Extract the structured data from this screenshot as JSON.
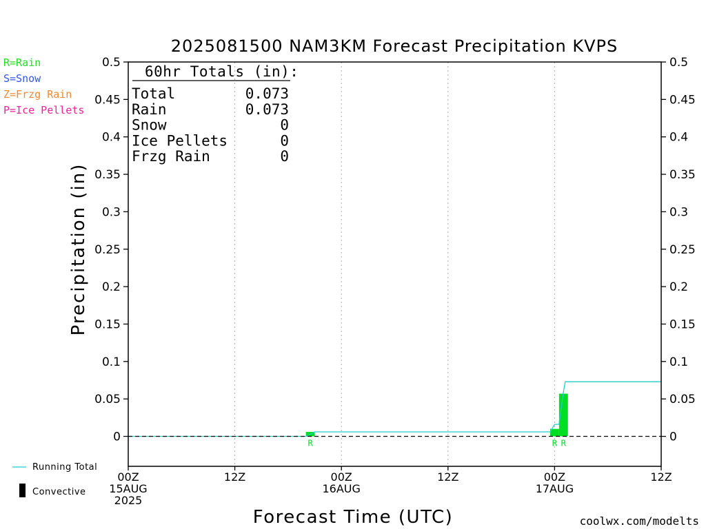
{
  "chart_data": {
    "type": "bar",
    "title": "2025081500 NAM3KM Forecast Precipitation KVPS",
    "xlabel": "Forecast Time (UTC)",
    "ylabel": "Precipitation (in)",
    "ylim": [
      -0.04,
      0.5
    ],
    "xlim_hours": [
      0,
      60
    ],
    "y_ticks": [
      0,
      0.05,
      0.1,
      0.15,
      0.2,
      0.25,
      0.3,
      0.35,
      0.4,
      0.45,
      0.5
    ],
    "y_tick_labels": [
      "0",
      "0.05",
      "0.1",
      "0.15",
      "0.2",
      "0.25",
      "0.3",
      "0.35",
      "0.4",
      "0.45",
      "0.5"
    ],
    "x_ticks": [
      {
        "hour": 0,
        "lines": [
          "00Z",
          "15AUG",
          "2025"
        ]
      },
      {
        "hour": 12,
        "lines": [
          "12Z"
        ]
      },
      {
        "hour": 24,
        "lines": [
          "00Z",
          "16AUG"
        ]
      },
      {
        "hour": 36,
        "lines": [
          "12Z"
        ]
      },
      {
        "hour": 48,
        "lines": [
          "00Z",
          "17AUG"
        ]
      },
      {
        "hour": 60,
        "lines": [
          "12Z"
        ]
      }
    ],
    "grid_hours": [
      12,
      24,
      36,
      48
    ],
    "legend_types": [
      {
        "label": "R=Rain",
        "color": "#22dd22"
      },
      {
        "label": "S=Snow",
        "color": "#3355ee"
      },
      {
        "label": "Z=Frzg Rain",
        "color": "#ee8833"
      },
      {
        "label": "P=Ice Pellets",
        "color": "#ee2299"
      }
    ],
    "legend_lines": [
      {
        "label": "Running Total",
        "color": "#22cccc"
      },
      {
        "label": "Convective",
        "color": "#000000"
      }
    ],
    "bars": [
      {
        "start_hour": 20,
        "end_hour": 21,
        "value": 0.006,
        "type": "R"
      },
      {
        "start_hour": 47.5,
        "end_hour": 48.5,
        "value": 0.01,
        "type": "R"
      },
      {
        "start_hour": 48.5,
        "end_hour": 49.5,
        "value": 0.057,
        "type": "R"
      }
    ],
    "running_total": {
      "x": [
        0,
        20,
        21,
        47,
        47.5,
        48,
        48.5,
        49,
        49.2,
        60
      ],
      "y": [
        0,
        0,
        0.006,
        0.006,
        0.006,
        0.016,
        0.016,
        0.06,
        0.073,
        0.073
      ]
    },
    "totals_box": {
      "title": "60hr Totals (in):",
      "rows": [
        {
          "label": "Total",
          "value": "0.073"
        },
        {
          "label": "Rain",
          "value": "0.073"
        },
        {
          "label": "Snow",
          "value": "0"
        },
        {
          "label": "Ice Pellets",
          "value": "0"
        },
        {
          "label": "Frzg Rain",
          "value": "0"
        }
      ]
    },
    "colors": {
      "rain": "#00dd22",
      "running_total": "#22cccc",
      "grid": "#aaaaaa",
      "credit": "#dd2233"
    },
    "credit": "coolwx.com/modelts"
  }
}
